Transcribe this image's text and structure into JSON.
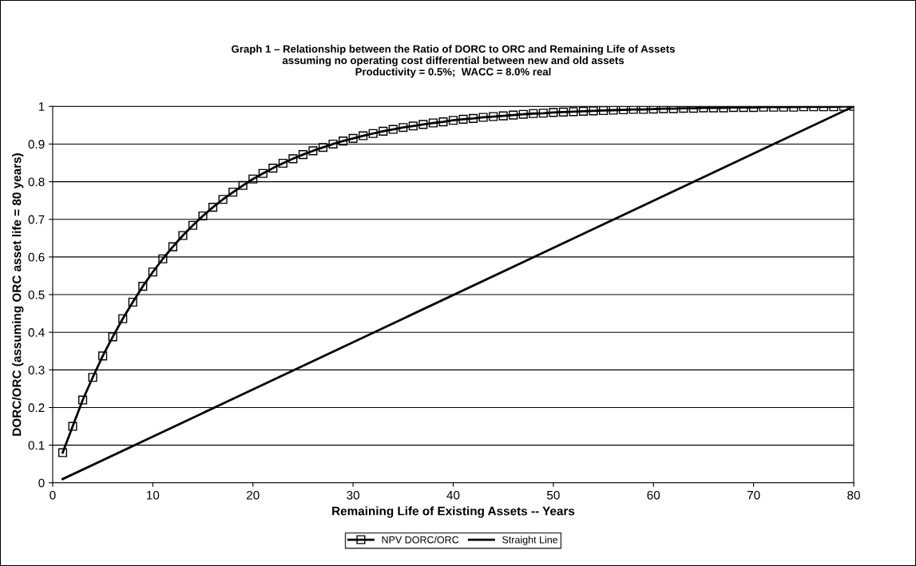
{
  "chart_data": {
    "type": "line",
    "title": "Graph 1 – Relationship between the Ratio of DORC to ORC and Remaining Life of Assets\nassuming no operating cost differential between new and old assets\nProductivity = 0.5%;  WACC = 8.0% real",
    "xlabel": "Remaining Life of Existing Assets -- Years",
    "ylabel": "DORC/ORC (assuming ORC asset life = 80 years)",
    "xlim": [
      0,
      80
    ],
    "xticks": [
      0,
      10,
      20,
      30,
      40,
      50,
      60,
      70,
      80
    ],
    "ylim": [
      0,
      1
    ],
    "yticks": [
      0,
      0.1,
      0.2,
      0.3,
      0.4,
      0.5,
      0.6,
      0.7,
      0.8,
      0.9,
      1
    ],
    "grid": "y",
    "legend": "bottom",
    "line_style": "solid",
    "series": [
      {
        "name": "NPV DORC/ORC",
        "color": "#000000",
        "marker": "square",
        "x": [
          1,
          2,
          3,
          4,
          5,
          6,
          7,
          8,
          9,
          10,
          11,
          12,
          13,
          14,
          15,
          16,
          17,
          18,
          19,
          20,
          21,
          22,
          23,
          24,
          25,
          26,
          27,
          28,
          29,
          30,
          31,
          32,
          33,
          34,
          35,
          36,
          37,
          38,
          39,
          40,
          41,
          42,
          43,
          44,
          45,
          46,
          47,
          48,
          49,
          50,
          51,
          52,
          53,
          54,
          55,
          56,
          57,
          58,
          59,
          60,
          61,
          62,
          63,
          64,
          65,
          66,
          67,
          68,
          69,
          70,
          71,
          72,
          73,
          74,
          75,
          76,
          77,
          78,
          79,
          80
        ],
        "values": [
          0.08,
          0.15,
          0.22,
          0.28,
          0.337,
          0.388,
          0.436,
          0.48,
          0.522,
          0.56,
          0.595,
          0.627,
          0.657,
          0.684,
          0.709,
          0.732,
          0.753,
          0.772,
          0.79,
          0.807,
          0.822,
          0.836,
          0.849,
          0.861,
          0.872,
          0.882,
          0.891,
          0.9,
          0.908,
          0.915,
          0.922,
          0.928,
          0.934,
          0.939,
          0.944,
          0.948,
          0.952,
          0.956,
          0.959,
          0.963,
          0.966,
          0.968,
          0.971,
          0.973,
          0.975,
          0.977,
          0.979,
          0.981,
          0.982,
          0.984,
          0.985,
          0.986,
          0.987,
          0.988,
          0.989,
          0.99,
          0.991,
          0.992,
          0.992,
          0.993,
          0.994,
          0.994,
          0.995,
          0.995,
          0.996,
          0.996,
          0.996,
          0.997,
          0.997,
          0.997,
          0.998,
          0.998,
          0.998,
          0.998,
          0.999,
          0.999,
          0.999,
          0.999,
          1,
          1
        ]
      },
      {
        "name": "Straight Line",
        "color": "#000000",
        "marker": "none",
        "x": [
          1,
          80
        ],
        "values": [
          0.01,
          1
        ]
      }
    ]
  }
}
